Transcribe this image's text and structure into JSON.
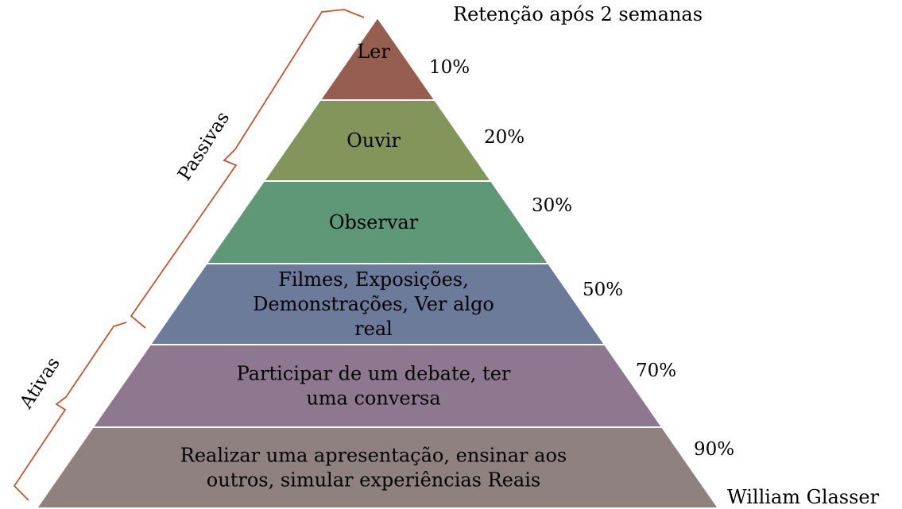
{
  "header": {
    "title": "Retenção após 2 semanas"
  },
  "credit": "William  Glasser",
  "groups": {
    "passive": "Passivas",
    "active": "Ativas"
  },
  "colors": {
    "bracket": "#c8562a",
    "divider": "#ffffff"
  },
  "levels": [
    {
      "lines": [
        "Ler"
      ],
      "percent": "10%",
      "color": "#955e4f"
    },
    {
      "lines": [
        "Ouvir"
      ],
      "percent": "20%",
      "color": "#83955a"
    },
    {
      "lines": [
        "Observar"
      ],
      "percent": "30%",
      "color": "#5f9876"
    },
    {
      "lines": [
        "Filmes, Exposições,",
        "Demonstrações, Ver algo",
        "real"
      ],
      "percent": "50%",
      "color": "#6b7b99"
    },
    {
      "lines": [
        "Participar de um debate, ter",
        "uma conversa"
      ],
      "percent": "70%",
      "color": "#8e7890"
    },
    {
      "lines": [
        "Realizar uma apresentação,  ensinar aos",
        "outros, simular experiências Reais"
      ],
      "percent": "90%",
      "color": "#8f8180"
    }
  ]
}
